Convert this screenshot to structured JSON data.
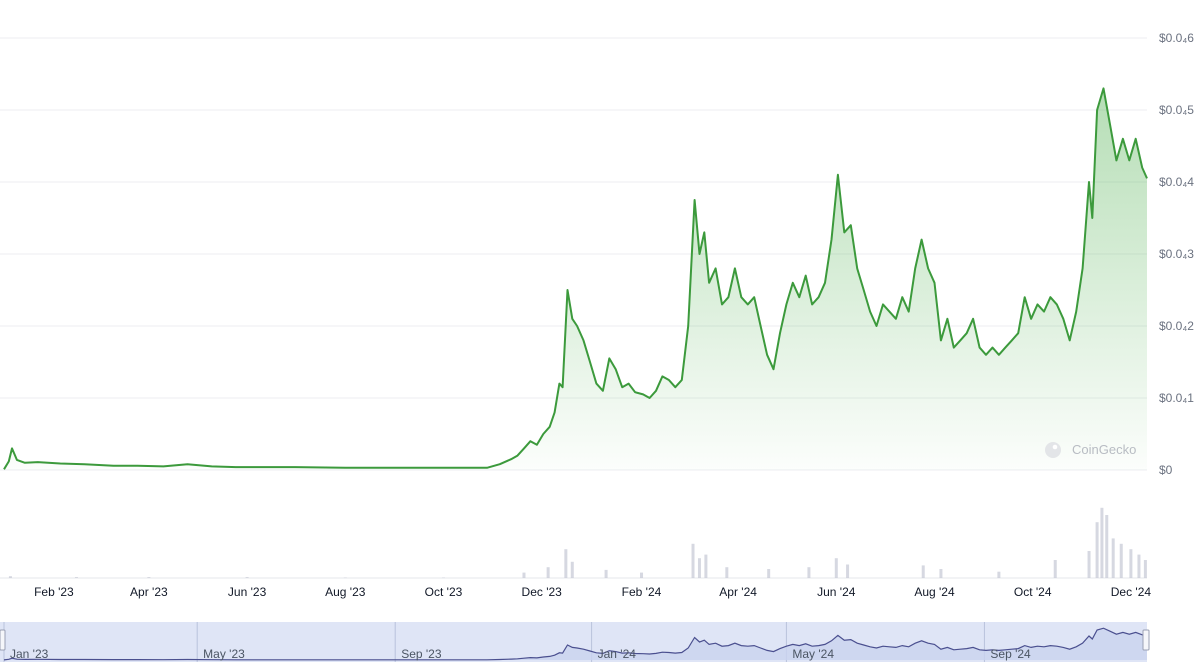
{
  "chart_data": {
    "type": "area",
    "title": "",
    "xlabel": "",
    "ylabel": "",
    "x_ticks": [
      "Feb '23",
      "Apr '23",
      "Jun '23",
      "Aug '23",
      "Oct '23",
      "Dec '23",
      "Feb '24",
      "Apr '24",
      "Jun '24",
      "Aug '24",
      "Oct '24",
      "Dec '24"
    ],
    "y_ticks": [
      {
        "label": "$0",
        "value": 0
      },
      {
        "label": "$0.0₄1",
        "value": 1e-05
      },
      {
        "label": "$0.0₄2",
        "value": 2e-05
      },
      {
        "label": "$0.0₄3",
        "value": 3e-05
      },
      {
        "label": "$0.0₄4",
        "value": 4e-05
      },
      {
        "label": "$0.0₄5",
        "value": 5e-05
      },
      {
        "label": "$0.0₄6",
        "value": 6e-05
      }
    ],
    "ylim": [
      0,
      6e-05
    ],
    "xlim": [
      "2023-01-01",
      "2024-12-11"
    ],
    "grid": true,
    "series": [
      {
        "values": [
          [
            "2023-01-01",
            1e-07
          ],
          [
            "2023-01-04",
            1.2e-06
          ],
          [
            "2023-01-06",
            3e-06
          ],
          [
            "2023-01-09",
            1.4e-06
          ],
          [
            "2023-01-14",
            1e-06
          ],
          [
            "2023-01-22",
            1.1e-06
          ],
          [
            "2023-02-05",
            9e-07
          ],
          [
            "2023-02-20",
            8e-07
          ],
          [
            "2023-03-10",
            6e-07
          ],
          [
            "2023-03-25",
            6e-07
          ],
          [
            "2023-04-10",
            5e-07
          ],
          [
            "2023-04-25",
            8e-07
          ],
          [
            "2023-05-10",
            5e-07
          ],
          [
            "2023-05-25",
            4e-07
          ],
          [
            "2023-06-10",
            4e-07
          ],
          [
            "2023-07-01",
            4e-07
          ],
          [
            "2023-08-01",
            3e-07
          ],
          [
            "2023-09-01",
            3e-07
          ],
          [
            "2023-10-01",
            3e-07
          ],
          [
            "2023-10-28",
            3e-07
          ],
          [
            "2023-11-05",
            8e-07
          ],
          [
            "2023-11-12",
            1.5e-06
          ],
          [
            "2023-11-16",
            2e-06
          ],
          [
            "2023-11-20",
            3e-06
          ],
          [
            "2023-11-24",
            4e-06
          ],
          [
            "2023-11-28",
            3.5e-06
          ],
          [
            "2023-12-02",
            5e-06
          ],
          [
            "2023-12-06",
            6e-06
          ],
          [
            "2023-12-09",
            8e-06
          ],
          [
            "2023-12-12",
            1.2e-05
          ],
          [
            "2023-12-14",
            1.15e-05
          ],
          [
            "2023-12-17",
            2.5e-05
          ],
          [
            "2023-12-20",
            2.1e-05
          ],
          [
            "2023-12-23",
            2e-05
          ],
          [
            "2023-12-27",
            1.8e-05
          ],
          [
            "2023-12-31",
            1.5e-05
          ],
          [
            "2024-01-04",
            1.2e-05
          ],
          [
            "2024-01-08",
            1.1e-05
          ],
          [
            "2024-01-12",
            1.55e-05
          ],
          [
            "2024-01-16",
            1.4e-05
          ],
          [
            "2024-01-20",
            1.15e-05
          ],
          [
            "2024-01-24",
            1.2e-05
          ],
          [
            "2024-01-28",
            1.08e-05
          ],
          [
            "2024-02-02",
            1.05e-05
          ],
          [
            "2024-02-06",
            1e-05
          ],
          [
            "2024-02-10",
            1.1e-05
          ],
          [
            "2024-02-14",
            1.3e-05
          ],
          [
            "2024-02-18",
            1.25e-05
          ],
          [
            "2024-02-22",
            1.15e-05
          ],
          [
            "2024-02-26",
            1.25e-05
          ],
          [
            "2024-03-01",
            2e-05
          ],
          [
            "2024-03-05",
            3.75e-05
          ],
          [
            "2024-03-08",
            3e-05
          ],
          [
            "2024-03-11",
            3.3e-05
          ],
          [
            "2024-03-14",
            2.6e-05
          ],
          [
            "2024-03-18",
            2.8e-05
          ],
          [
            "2024-03-22",
            2.3e-05
          ],
          [
            "2024-03-26",
            2.4e-05
          ],
          [
            "2024-03-30",
            2.8e-05
          ],
          [
            "2024-04-03",
            2.4e-05
          ],
          [
            "2024-04-07",
            2.3e-05
          ],
          [
            "2024-04-11",
            2.4e-05
          ],
          [
            "2024-04-15",
            2e-05
          ],
          [
            "2024-04-19",
            1.6e-05
          ],
          [
            "2024-04-23",
            1.4e-05
          ],
          [
            "2024-04-27",
            1.9e-05
          ],
          [
            "2024-05-01",
            2.3e-05
          ],
          [
            "2024-05-05",
            2.6e-05
          ],
          [
            "2024-05-09",
            2.4e-05
          ],
          [
            "2024-05-13",
            2.7e-05
          ],
          [
            "2024-05-17",
            2.3e-05
          ],
          [
            "2024-05-21",
            2.4e-05
          ],
          [
            "2024-05-25",
            2.6e-05
          ],
          [
            "2024-05-29",
            3.2e-05
          ],
          [
            "2024-06-02",
            4.1e-05
          ],
          [
            "2024-06-06",
            3.3e-05
          ],
          [
            "2024-06-10",
            3.4e-05
          ],
          [
            "2024-06-14",
            2.8e-05
          ],
          [
            "2024-06-18",
            2.5e-05
          ],
          [
            "2024-06-22",
            2.2e-05
          ],
          [
            "2024-06-26",
            2e-05
          ],
          [
            "2024-06-30",
            2.3e-05
          ],
          [
            "2024-07-04",
            2.2e-05
          ],
          [
            "2024-07-08",
            2.1e-05
          ],
          [
            "2024-07-12",
            2.4e-05
          ],
          [
            "2024-07-16",
            2.2e-05
          ],
          [
            "2024-07-20",
            2.8e-05
          ],
          [
            "2024-07-24",
            3.2e-05
          ],
          [
            "2024-07-28",
            2.8e-05
          ],
          [
            "2024-08-01",
            2.6e-05
          ],
          [
            "2024-08-05",
            1.8e-05
          ],
          [
            "2024-08-09",
            2.1e-05
          ],
          [
            "2024-08-13",
            1.7e-05
          ],
          [
            "2024-08-17",
            1.8e-05
          ],
          [
            "2024-08-21",
            1.9e-05
          ],
          [
            "2024-08-25",
            2.1e-05
          ],
          [
            "2024-08-29",
            1.7e-05
          ],
          [
            "2024-09-02",
            1.6e-05
          ],
          [
            "2024-09-06",
            1.7e-05
          ],
          [
            "2024-09-10",
            1.6e-05
          ],
          [
            "2024-09-14",
            1.7e-05
          ],
          [
            "2024-09-18",
            1.8e-05
          ],
          [
            "2024-09-22",
            1.9e-05
          ],
          [
            "2024-09-26",
            2.4e-05
          ],
          [
            "2024-09-30",
            2.1e-05
          ],
          [
            "2024-10-04",
            2.3e-05
          ],
          [
            "2024-10-08",
            2.2e-05
          ],
          [
            "2024-10-12",
            2.4e-05
          ],
          [
            "2024-10-16",
            2.3e-05
          ],
          [
            "2024-10-20",
            2.1e-05
          ],
          [
            "2024-10-24",
            1.8e-05
          ],
          [
            "2024-10-28",
            2.2e-05
          ],
          [
            "2024-11-01",
            2.8e-05
          ],
          [
            "2024-11-05",
            4e-05
          ],
          [
            "2024-11-07",
            3.5e-05
          ],
          [
            "2024-11-10",
            5e-05
          ],
          [
            "2024-11-14",
            5.3e-05
          ],
          [
            "2024-11-18",
            4.8e-05
          ],
          [
            "2024-11-22",
            4.3e-05
          ],
          [
            "2024-11-26",
            4.6e-05
          ],
          [
            "2024-11-30",
            4.3e-05
          ],
          [
            "2024-12-04",
            4.6e-05
          ],
          [
            "2024-12-08",
            4.2e-05
          ],
          [
            "2024-12-11",
            4.05e-05
          ]
        ]
      }
    ],
    "volume": [
      [
        "2023-01-05",
        0.02
      ],
      [
        "2023-02-15",
        0.01
      ],
      [
        "2023-04-01",
        0.01
      ],
      [
        "2023-06-01",
        0.01
      ],
      [
        "2023-08-01",
        0.005
      ],
      [
        "2023-10-01",
        0.005
      ],
      [
        "2023-11-20",
        0.06
      ],
      [
        "2023-12-05",
        0.12
      ],
      [
        "2023-12-16",
        0.32
      ],
      [
        "2023-12-20",
        0.18
      ],
      [
        "2024-01-10",
        0.09
      ],
      [
        "2024-02-01",
        0.06
      ],
      [
        "2024-03-04",
        0.38
      ],
      [
        "2024-03-08",
        0.22
      ],
      [
        "2024-03-12",
        0.26
      ],
      [
        "2024-03-25",
        0.12
      ],
      [
        "2024-04-20",
        0.1
      ],
      [
        "2024-05-15",
        0.12
      ],
      [
        "2024-06-01",
        0.22
      ],
      [
        "2024-06-08",
        0.15
      ],
      [
        "2024-07-25",
        0.14
      ],
      [
        "2024-08-05",
        0.1
      ],
      [
        "2024-09-10",
        0.07
      ],
      [
        "2024-10-15",
        0.2
      ],
      [
        "2024-11-05",
        0.3
      ],
      [
        "2024-11-10",
        0.62
      ],
      [
        "2024-11-13",
        0.78
      ],
      [
        "2024-11-16",
        0.7
      ],
      [
        "2024-11-20",
        0.44
      ],
      [
        "2024-11-25",
        0.38
      ],
      [
        "2024-12-01",
        0.32
      ],
      [
        "2024-12-06",
        0.26
      ],
      [
        "2024-12-10",
        0.2
      ]
    ],
    "colors": {
      "line": "#3c9a3c",
      "area_fill": "#5bb55b",
      "grid": "#eceef1",
      "volume": "#c4c7d4",
      "navigator_line": "#4a4f8f",
      "navigator_fill": "#c9d3ef",
      "navigator_bg": "#dfe5f6"
    },
    "navigator": {
      "ticks": [
        "Jan '23",
        "May '23",
        "Sep '23",
        "Jan '24",
        "May '24",
        "Sep '24"
      ]
    },
    "watermark": "CoinGecko"
  }
}
